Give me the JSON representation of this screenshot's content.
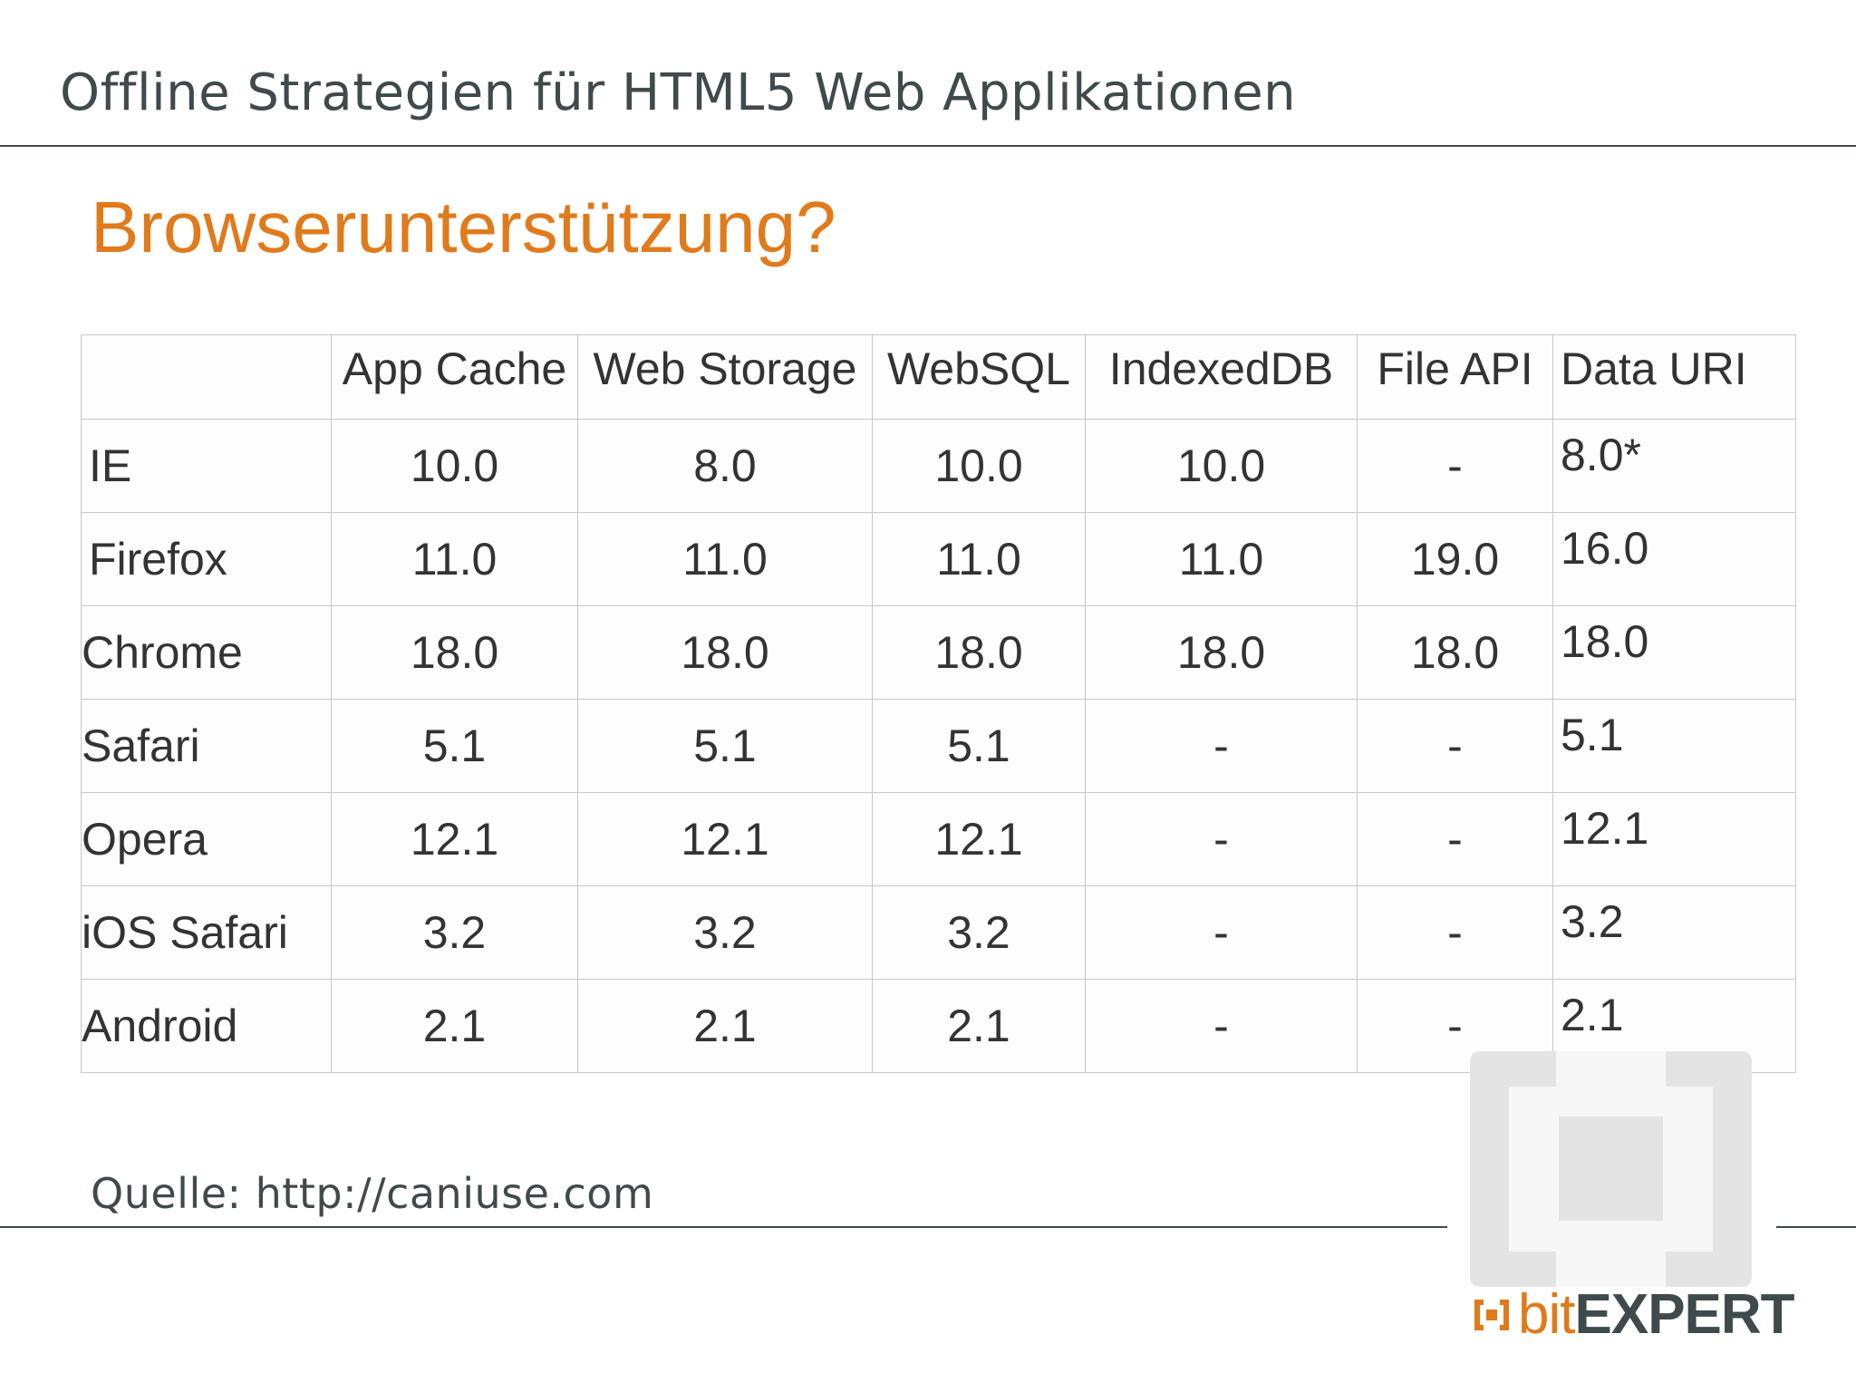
{
  "header": {
    "title": "Offline Strategien für HTML5 Web Applikationen"
  },
  "slide": {
    "heading": "Browserunterstützung?"
  },
  "table": {
    "columns": [
      "",
      "App Cache",
      "Web Storage",
      "WebSQL",
      "IndexedDB",
      "File API",
      "Data URI"
    ],
    "rows": [
      {
        "browser": "IE",
        "values": [
          "10.0",
          "8.0",
          "10.0",
          "10.0",
          "-",
          "8.0*"
        ]
      },
      {
        "browser": "Firefox",
        "values": [
          "11.0",
          "11.0",
          "11.0",
          "11.0",
          "19.0",
          "16.0"
        ]
      },
      {
        "browser": "Chrome",
        "values": [
          "18.0",
          "18.0",
          "18.0",
          "18.0",
          "18.0",
          "18.0"
        ]
      },
      {
        "browser": "Safari",
        "values": [
          "5.1",
          "5.1",
          "5.1",
          "-",
          "-",
          "5.1"
        ]
      },
      {
        "browser": "Opera",
        "values": [
          "12.1",
          "12.1",
          "12.1",
          "-",
          "-",
          "12.1"
        ]
      },
      {
        "browser": "iOS Safari",
        "values": [
          "3.2",
          "3.2",
          "3.2",
          "-",
          "-",
          "3.2"
        ]
      },
      {
        "browser": "Android",
        "values": [
          "2.1",
          "2.1",
          "2.1",
          "-",
          "-",
          "2.1"
        ]
      }
    ]
  },
  "footer": {
    "source": "Quelle: http://caniuse.com"
  },
  "brand": {
    "bit": "bit",
    "expert": "EXPERT"
  },
  "colors": {
    "accent": "#e07a1a",
    "text_dark": "#3f4a4d",
    "grid": "#c8c8c8"
  }
}
